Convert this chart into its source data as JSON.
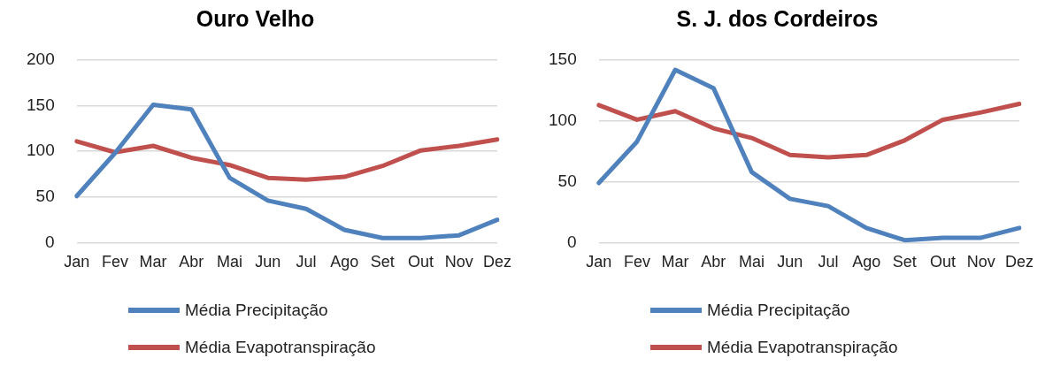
{
  "chart_data": [
    {
      "type": "line",
      "title": "Ouro Velho",
      "categories": [
        "Jan",
        "Fev",
        "Mar",
        "Abr",
        "Mai",
        "Jun",
        "Jul",
        "Ago",
        "Set",
        "Out",
        "Nov",
        "Dez"
      ],
      "series": [
        {
          "name": "Média Precipitação",
          "color": "#4f81bd",
          "values": [
            51,
            98,
            151,
            146,
            71,
            46,
            37,
            14,
            5,
            5,
            8,
            25
          ]
        },
        {
          "name": "Média Evapotranspiração",
          "color": "#c0504d",
          "values": [
            111,
            99,
            106,
            93,
            85,
            71,
            69,
            72,
            84,
            101,
            106,
            113
          ]
        }
      ],
      "ylim": [
        0,
        200
      ],
      "yticks": [
        0,
        50,
        100,
        150,
        200
      ],
      "grid": "y",
      "legend": "bottom",
      "marker": "none",
      "line_style": "solid"
    },
    {
      "type": "line",
      "title": "S. J. dos Cordeiros",
      "categories": [
        "Jan",
        "Fev",
        "Mar",
        "Abr",
        "Mai",
        "Jun",
        "Jul",
        "Ago",
        "Set",
        "Out",
        "Nov",
        "Dez"
      ],
      "series": [
        {
          "name": "Média Precipitação",
          "color": "#4f81bd",
          "values": [
            49,
            83,
            142,
            127,
            58,
            36,
            30,
            12,
            2,
            4,
            4,
            12
          ]
        },
        {
          "name": "Média Evapotranspiração",
          "color": "#c0504d",
          "values": [
            113,
            101,
            108,
            94,
            86,
            72,
            70,
            72,
            84,
            101,
            107,
            114
          ]
        }
      ],
      "ylim": [
        0,
        150
      ],
      "yticks": [
        0,
        50,
        100,
        150
      ],
      "grid": "y",
      "legend": "bottom",
      "marker": "none",
      "line_style": "solid"
    }
  ]
}
